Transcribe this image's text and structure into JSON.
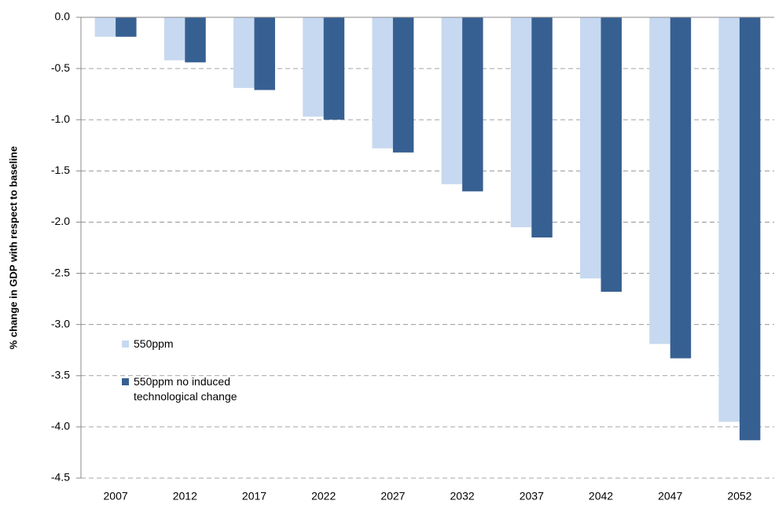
{
  "chart_data": {
    "type": "bar",
    "y_label": "% change in GDP with respect to baseline",
    "categories": [
      "2007",
      "2012",
      "2017",
      "2022",
      "2027",
      "2032",
      "2037",
      "2042",
      "2047",
      "2052"
    ],
    "series": [
      {
        "name": "550ppm",
        "color": "#c6d9f0",
        "values": [
          -0.19,
          -0.42,
          -0.69,
          -0.97,
          -1.28,
          -1.63,
          -2.05,
          -2.55,
          -3.19,
          -3.95
        ]
      },
      {
        "name": "550ppm no induced technological change",
        "color": "#376092",
        "values": [
          -0.19,
          -0.44,
          -0.71,
          -1.0,
          -1.32,
          -1.7,
          -2.15,
          -2.68,
          -3.33,
          -4.13
        ]
      }
    ],
    "ylim": [
      -4.5,
      0
    ],
    "yticks": [
      {
        "value": 0,
        "label": "0.0"
      },
      -0.5,
      {
        "value": -1,
        "label": "-1.0"
      },
      -1.5,
      {
        "value": -2,
        "label": "-2.0"
      },
      -2.5,
      {
        "value": -3,
        "label": "-3.0"
      },
      -3.5,
      {
        "value": -4,
        "label": "-4.0"
      },
      -4.5
    ],
    "grid": true
  }
}
